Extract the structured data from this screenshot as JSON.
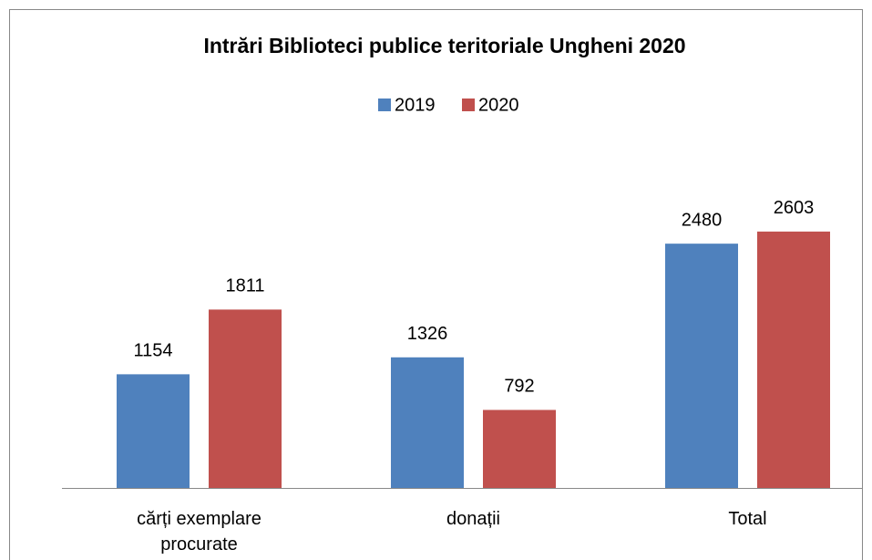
{
  "chart_data": {
    "type": "bar",
    "title": "Intrări Biblioteci publice teritoriale Ungheni 2020",
    "categories": [
      "cărți exemplare procurate",
      "donații",
      "Total"
    ],
    "series": [
      {
        "name": "2019",
        "color": "#4f81bd",
        "values": [
          1154,
          1326,
          2480
        ]
      },
      {
        "name": "2020",
        "color": "#c0504d",
        "values": [
          1811,
          792,
          2603
        ]
      }
    ],
    "ylim": [
      0,
      3000
    ],
    "legend": "top"
  }
}
